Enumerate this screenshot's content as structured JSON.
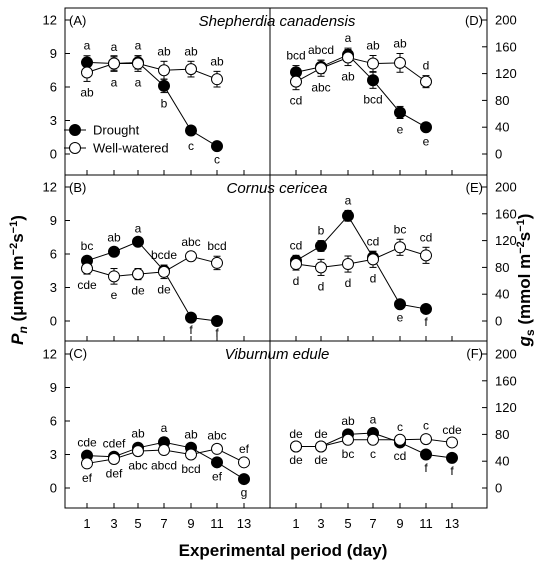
{
  "figure": {
    "xlabel": "Experimental period (day)",
    "ylabel_left": "Pn (μmol m⁻²s⁻¹)",
    "ylabel_right": "gs (mmol m⁻²s⁻¹)"
  },
  "legend": {
    "drought": "Drought",
    "well_watered": "Well-watered"
  },
  "x_ticks": [
    1,
    3,
    5,
    7,
    9,
    11,
    13
  ],
  "left_ticks": [
    0,
    3,
    6,
    9,
    12
  ],
  "right_ticks": [
    0,
    40,
    80,
    120,
    160,
    200
  ],
  "rows": [
    {
      "species": "Shepherdia canadensis",
      "panel_left": "(A)",
      "panel_right": "(D)"
    },
    {
      "species": "Cornus cericea",
      "panel_left": "(B)",
      "panel_right": "(E)"
    },
    {
      "species": "Viburnum edule",
      "panel_left": "(C)",
      "panel_right": "(F)"
    }
  ],
  "chart_data": [
    {
      "type": "line",
      "panel": "(A)",
      "title": "Shepherdia canadensis",
      "xlabel": "Experimental period (day)",
      "ylabel": "Pn (μmol m⁻²s⁻¹)",
      "ylim": [
        -1.2,
        12
      ],
      "series": [
        {
          "name": "Drought",
          "x": [
            1,
            3,
            5,
            7,
            9,
            11
          ],
          "values": [
            8.2,
            8.1,
            8.2,
            6.1,
            2.1,
            0.7
          ],
          "err": [
            0.6,
            0.6,
            0.6,
            0.6,
            0.4,
            0.2
          ],
          "labels": [
            "a",
            "a",
            "a",
            "b",
            "c",
            "c"
          ]
        },
        {
          "name": "Well-watered",
          "x": [
            1,
            3,
            5,
            7,
            9,
            11
          ],
          "values": [
            7.3,
            8.1,
            8.1,
            7.5,
            7.6,
            6.7
          ],
          "err": [
            0.8,
            0.7,
            0.7,
            0.8,
            0.7,
            0.7
          ],
          "labels": [
            "ab",
            "a",
            "a",
            "ab",
            "ab",
            "ab"
          ]
        }
      ]
    },
    {
      "type": "line",
      "panel": "(D)",
      "title": "Shepherdia canadensis",
      "xlabel": "Experimental period (day)",
      "ylabel": "gs (mmol m⁻²s⁻¹)",
      "ylim": [
        -20,
        200
      ],
      "series": [
        {
          "name": "Drought",
          "x": [
            1,
            3,
            5,
            7,
            9,
            11
          ],
          "values": [
            122,
            130,
            148,
            110,
            62,
            40
          ],
          "err": [
            10,
            10,
            10,
            12,
            9,
            5
          ],
          "labels": [
            "bcd",
            "abcd",
            "a",
            "bcd",
            "e",
            "e"
          ]
        },
        {
          "name": "Well-watered",
          "x": [
            1,
            3,
            5,
            7,
            9,
            11
          ],
          "values": [
            108,
            128,
            144,
            135,
            136,
            108
          ],
          "err": [
            12,
            12,
            12,
            12,
            14,
            9
          ],
          "labels": [
            "cd",
            "abc",
            "ab",
            "ab",
            "ab",
            "d"
          ]
        }
      ]
    },
    {
      "type": "line",
      "panel": "(B)",
      "title": "Cornus cericea",
      "xlabel": "Experimental period (day)",
      "ylabel": "Pn (μmol m⁻²s⁻¹)",
      "ylim": [
        -1.2,
        12
      ],
      "series": [
        {
          "name": "Drought",
          "x": [
            1,
            3,
            5,
            7,
            9,
            11
          ],
          "values": [
            5.4,
            6.2,
            7.1,
            4.5,
            0.3,
            0.0
          ],
          "err": [
            0.4,
            0.4,
            0.3,
            0.5,
            0.1,
            0.1
          ],
          "labels": [
            "bc",
            "ab",
            "a",
            "bcde",
            "f",
            "f"
          ]
        },
        {
          "name": "Well-watered",
          "x": [
            1,
            3,
            5,
            7,
            9,
            11
          ],
          "values": [
            4.7,
            4.0,
            4.2,
            4.4,
            5.8,
            5.2
          ],
          "err": [
            0.5,
            0.7,
            0.5,
            0.6,
            0.4,
            0.6
          ],
          "labels": [
            "cde",
            "e",
            "de",
            "de",
            "abc",
            "bcd"
          ]
        }
      ]
    },
    {
      "type": "line",
      "panel": "(E)",
      "title": "Cornus cericea",
      "xlabel": "Experimental period (day)",
      "ylabel": "gs (mmol m⁻²s⁻¹)",
      "ylim": [
        -20,
        200
      ],
      "series": [
        {
          "name": "Drought",
          "x": [
            1,
            3,
            5,
            7,
            9,
            11
          ],
          "values": [
            90,
            112,
            157,
            95,
            25,
            18
          ],
          "err": [
            8,
            8,
            8,
            9,
            3,
            3
          ],
          "labels": [
            "cd",
            "b",
            "a",
            "cd",
            "e",
            "f"
          ]
        },
        {
          "name": "Well-watered",
          "x": [
            1,
            3,
            5,
            7,
            9,
            11
          ],
          "values": [
            85,
            80,
            85,
            92,
            110,
            98
          ],
          "err": [
            9,
            12,
            12,
            12,
            12,
            12
          ],
          "labels": [
            "d",
            "d",
            "d",
            "d",
            "bc",
            "cd"
          ]
        }
      ]
    },
    {
      "type": "line",
      "panel": "(C)",
      "title": "Viburnum edule",
      "xlabel": "Experimental period (day)",
      "ylabel": "Pn (μmol m⁻²s⁻¹)",
      "ylim": [
        -1.2,
        12
      ],
      "series": [
        {
          "name": "Drought",
          "x": [
            1,
            3,
            5,
            7,
            9,
            11,
            13
          ],
          "values": [
            2.9,
            2.8,
            3.6,
            4.1,
            3.6,
            2.3,
            0.8
          ],
          "err": [
            0.3,
            0.3,
            0.4,
            0.4,
            0.3,
            0.3,
            0.2
          ],
          "labels": [
            "cde",
            "cdef",
            "ab",
            "a",
            "ab",
            "ef",
            "g"
          ]
        },
        {
          "name": "Well-watered",
          "x": [
            1,
            3,
            5,
            7,
            9,
            11,
            13
          ],
          "values": [
            2.2,
            2.6,
            3.3,
            3.4,
            3.0,
            3.5,
            2.3
          ],
          "err": [
            0.3,
            0.3,
            0.3,
            0.4,
            0.3,
            0.3,
            0.3
          ],
          "labels": [
            "ef",
            "def",
            "abc",
            "abcd",
            "bcd",
            "abc",
            "ef"
          ]
        }
      ]
    },
    {
      "type": "line",
      "panel": "(F)",
      "title": "Viburnum edule",
      "xlabel": "Experimental period (day)",
      "ylabel": "gs (mmol m⁻²s⁻¹)",
      "ylim": [
        -20,
        200
      ],
      "series": [
        {
          "name": "Drought",
          "x": [
            1,
            3,
            5,
            7,
            9,
            11,
            13
          ],
          "values": [
            62,
            62,
            80,
            82,
            68,
            50,
            45
          ],
          "err": [
            4,
            4,
            5,
            5,
            4,
            4,
            3
          ],
          "labels": [
            "de",
            "de",
            "ab",
            "a",
            "cd",
            "f",
            "f"
          ]
        },
        {
          "name": "Well-watered",
          "x": [
            1,
            3,
            5,
            7,
            9,
            11,
            13
          ],
          "values": [
            62,
            62,
            72,
            72,
            72,
            73,
            68
          ],
          "err": [
            4,
            4,
            5,
            5,
            4,
            5,
            4
          ],
          "labels": [
            "de",
            "de",
            "bc",
            "c",
            "c",
            "c",
            "cde"
          ]
        }
      ]
    }
  ]
}
